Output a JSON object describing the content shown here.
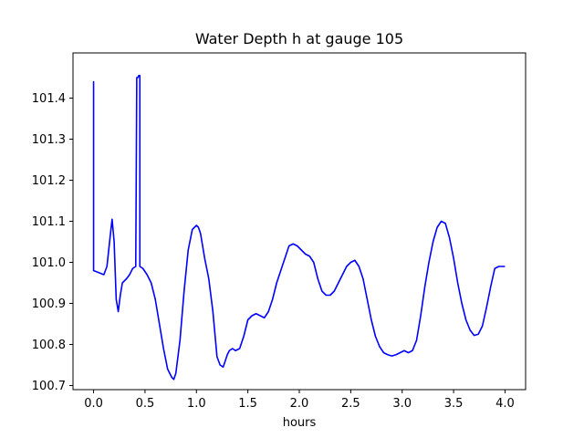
{
  "chart_data": {
    "type": "line",
    "title": "Water Depth h at gauge 105",
    "xlabel": "hours",
    "ylabel": "",
    "xlim": [
      -0.2,
      4.2
    ],
    "ylim": [
      100.69,
      101.51
    ],
    "xticks": [
      0.0,
      0.5,
      1.0,
      1.5,
      2.0,
      2.5,
      3.0,
      3.5,
      4.0
    ],
    "xtick_labels": [
      "0.0",
      "0.5",
      "1.0",
      "1.5",
      "2.0",
      "2.5",
      "3.0",
      "3.5",
      "4.0"
    ],
    "yticks": [
      100.7,
      100.8,
      100.9,
      101.0,
      101.1,
      101.2,
      101.3,
      101.4
    ],
    "ytick_labels": [
      "100.7",
      "100.8",
      "100.9",
      "101.0",
      "101.1",
      "101.2",
      "101.3",
      "101.4"
    ],
    "grid": false,
    "series": [
      {
        "color": "#0000ff",
        "x": [
          0.0,
          0.0,
          0.0,
          0.05,
          0.1,
          0.13,
          0.16,
          0.18,
          0.2,
          0.22,
          0.24,
          0.26,
          0.28,
          0.3,
          0.32,
          0.35,
          0.38,
          0.41,
          0.42,
          0.42,
          0.43,
          0.44,
          0.44,
          0.45,
          0.45,
          0.48,
          0.52,
          0.56,
          0.6,
          0.64,
          0.68,
          0.72,
          0.76,
          0.78,
          0.8,
          0.84,
          0.88,
          0.92,
          0.96,
          1.0,
          1.02,
          1.04,
          1.08,
          1.12,
          1.16,
          1.2,
          1.23,
          1.26,
          1.28,
          1.3,
          1.32,
          1.35,
          1.38,
          1.42,
          1.46,
          1.5,
          1.54,
          1.58,
          1.62,
          1.66,
          1.7,
          1.74,
          1.78,
          1.82,
          1.86,
          1.9,
          1.94,
          1.98,
          2.02,
          2.06,
          2.1,
          2.14,
          2.18,
          2.22,
          2.26,
          2.3,
          2.34,
          2.38,
          2.42,
          2.46,
          2.5,
          2.54,
          2.58,
          2.62,
          2.66,
          2.7,
          2.74,
          2.78,
          2.82,
          2.86,
          2.9,
          2.94,
          2.98,
          3.02,
          3.06,
          3.1,
          3.14,
          3.18,
          3.22,
          3.26,
          3.3,
          3.34,
          3.38,
          3.42,
          3.46,
          3.5,
          3.54,
          3.58,
          3.62,
          3.66,
          3.7,
          3.74,
          3.78,
          3.82,
          3.86,
          3.9,
          3.94,
          3.98,
          4.0
        ],
        "y": [
          100.98,
          101.44,
          100.98,
          100.975,
          100.97,
          100.99,
          101.06,
          101.105,
          101.05,
          100.91,
          100.88,
          100.92,
          100.95,
          100.955,
          100.96,
          100.97,
          100.985,
          100.99,
          101.45,
          101.45,
          101.45,
          101.455,
          101.455,
          101.455,
          100.99,
          100.985,
          100.97,
          100.95,
          100.91,
          100.85,
          100.79,
          100.74,
          100.72,
          100.715,
          100.73,
          100.81,
          100.93,
          101.03,
          101.08,
          101.09,
          101.085,
          101.07,
          101.01,
          100.96,
          100.88,
          100.77,
          100.75,
          100.745,
          100.76,
          100.775,
          100.785,
          100.79,
          100.785,
          100.79,
          100.82,
          100.86,
          100.87,
          100.875,
          100.87,
          100.865,
          100.88,
          100.91,
          100.95,
          100.98,
          101.01,
          101.04,
          101.045,
          101.04,
          101.03,
          101.02,
          101.015,
          101.0,
          100.96,
          100.93,
          100.92,
          100.92,
          100.93,
          100.95,
          100.97,
          100.99,
          101.0,
          101.005,
          100.99,
          100.96,
          100.91,
          100.86,
          100.82,
          100.795,
          100.78,
          100.775,
          100.772,
          100.775,
          100.78,
          100.785,
          100.78,
          100.785,
          100.81,
          100.87,
          100.94,
          101.0,
          101.05,
          101.085,
          101.1,
          101.095,
          101.06,
          101.01,
          100.95,
          100.9,
          100.86,
          100.835,
          100.822,
          100.825,
          100.845,
          100.89,
          100.94,
          100.985,
          100.99,
          100.99,
          100.99
        ]
      }
    ]
  }
}
